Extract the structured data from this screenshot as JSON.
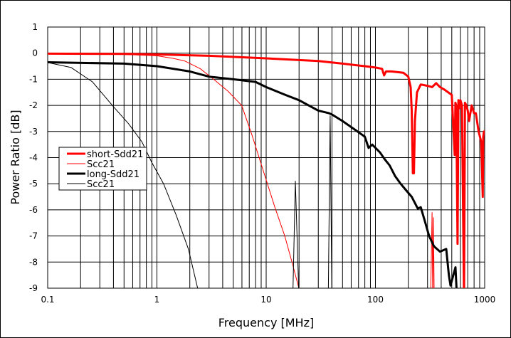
{
  "chart_data": {
    "type": "line",
    "title": "",
    "xlabel": "Frequency [MHz]",
    "ylabel": "Power Ratio [dB]",
    "xscale": "log",
    "xlim": [
      0.1,
      1000
    ],
    "ylim": [
      -9,
      1
    ],
    "xticks": [
      "0.1",
      "1",
      "10",
      "100",
      "1000"
    ],
    "yticks": [
      "1",
      "0",
      "-1",
      "-2",
      "-3",
      "-4",
      "-5",
      "-6",
      "-7",
      "-8",
      "-9"
    ],
    "grid": true,
    "legend_placement": "center-left",
    "series": [
      {
        "name": "short-Sdd21",
        "color": "#ff0000",
        "style": "thick",
        "x": [
          0.1,
          0.5,
          1,
          3,
          10,
          30,
          50,
          80,
          100,
          115,
          120,
          125,
          140,
          180,
          200,
          210,
          215,
          220,
          225,
          230,
          240,
          260,
          300,
          330,
          360,
          390,
          430,
          500,
          532,
          540,
          550,
          565,
          575,
          590,
          600,
          620,
          647,
          660,
          680,
          700,
          720,
          760,
          800,
          830,
          880,
          930,
          960,
          970,
          985,
          1000
        ],
        "y": [
          -0.02,
          -0.03,
          -0.05,
          -0.1,
          -0.2,
          -0.3,
          -0.4,
          -0.5,
          -0.55,
          -0.6,
          -0.85,
          -0.7,
          -0.7,
          -0.75,
          -0.9,
          -1.3,
          -2.2,
          -4.6,
          -4.6,
          -2.6,
          -1.5,
          -1.2,
          -1.25,
          -1.3,
          -1.15,
          -1.3,
          -1.4,
          -1.6,
          -3.9,
          -1.9,
          -2.0,
          -7.3,
          -1.8,
          -2.1,
          -1.8,
          -2.0,
          -9.5,
          -1.9,
          -2.0,
          -2.2,
          -2.6,
          -2.0,
          -2.3,
          -2.3,
          -3.0,
          -3.4,
          -5.5,
          -3.2,
          -3.0,
          -3.0
        ]
      },
      {
        "name": "Scc21",
        "color": "#ff0000",
        "style": "thin",
        "x": [
          0.1,
          0.5,
          1,
          1.4,
          1.8,
          2.5,
          3.3,
          4.45,
          5.97,
          7.5,
          9.4,
          12,
          14.8,
          17.5,
          19.9,
          21,
          320,
          330,
          335,
          340,
          345
        ],
        "y": [
          -0.02,
          -0.05,
          -0.1,
          -0.2,
          -0.3,
          -0.6,
          -1.0,
          -1.45,
          -2.0,
          -3.2,
          -4.5,
          -5.9,
          -7.0,
          -8.1,
          -9.0,
          -9.5,
          -9.5,
          -6.1,
          -9.5,
          -6.3,
          -9.5
        ]
      },
      {
        "name": "long-Sdd21",
        "color": "#000000",
        "style": "thick",
        "x": [
          0.1,
          0.5,
          1,
          2,
          3,
          5,
          8,
          10,
          15,
          20,
          30,
          37.6,
          40,
          50,
          66,
          80,
          86.6,
          93.5,
          110,
          121,
          135,
          151,
          170,
          190,
          215,
          244,
          260,
          282,
          310,
          344,
          390,
          445,
          470,
          487,
          541,
          560
        ],
        "y": [
          -0.35,
          -0.4,
          -0.5,
          -0.7,
          -0.9,
          -1.0,
          -1.1,
          -1.3,
          -1.6,
          -1.8,
          -2.2,
          -2.3,
          -2.35,
          -2.6,
          -2.95,
          -3.2,
          -3.63,
          -3.5,
          -3.8,
          -4.05,
          -4.3,
          -4.7,
          -5.0,
          -5.24,
          -5.5,
          -5.95,
          -5.9,
          -6.4,
          -7.0,
          -7.4,
          -7.6,
          -7.5,
          -8.5,
          -8.9,
          -8.2,
          -9.5
        ]
      },
      {
        "name": "Scc21",
        "color": "#000000",
        "style": "thin",
        "x": [
          0.1,
          0.164,
          0.257,
          0.4,
          0.55,
          0.73,
          0.9,
          1.15,
          1.5,
          1.94,
          2.36,
          2.5,
          17.5,
          18.5,
          20,
          37,
          38.5,
          40
        ],
        "y": [
          -0.36,
          -0.55,
          -1.1,
          -2.05,
          -2.7,
          -3.4,
          -4.2,
          -5.0,
          -6.2,
          -7.5,
          -9.0,
          -9.5,
          -9.5,
          -4.9,
          -9.5,
          -9.5,
          -2.4,
          -9.5
        ]
      }
    ]
  }
}
